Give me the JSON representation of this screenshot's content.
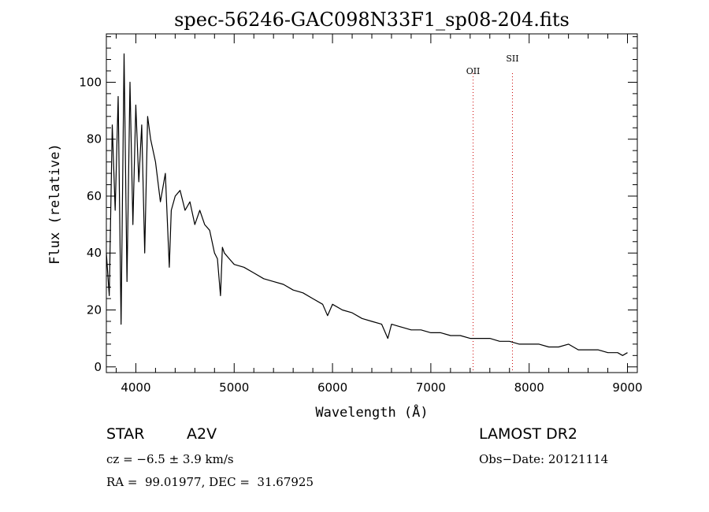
{
  "chart_data": {
    "type": "line",
    "title": "spec-56246-GAC098N33F1_sp08-204.fits",
    "xlabel": "Wavelength (Å)",
    "ylabel": "Flux (relative)",
    "xlim": [
      3700,
      9100
    ],
    "ylim": [
      -2,
      117
    ],
    "xticks": [
      4000,
      5000,
      6000,
      7000,
      8000,
      9000
    ],
    "yticks": [
      0,
      20,
      40,
      60,
      80,
      100
    ],
    "grid": false,
    "series": [
      {
        "x": [
          3700,
          3730,
          3760,
          3790,
          3820,
          3850,
          3880,
          3910,
          3940,
          3970,
          4000,
          4030,
          4060,
          4090,
          4120,
          4150,
          4200,
          4250,
          4300,
          4340,
          4360,
          4400,
          4450,
          4500,
          4550,
          4600,
          4650,
          4700,
          4750,
          4800,
          4830,
          4861,
          4880,
          4900,
          4950,
          5000,
          5100,
          5200,
          5300,
          5400,
          5500,
          5600,
          5700,
          5800,
          5900,
          5950,
          6000,
          6100,
          6200,
          6300,
          6400,
          6500,
          6563,
          6600,
          6700,
          6800,
          6900,
          7000,
          7100,
          7200,
          7300,
          7400,
          7500,
          7600,
          7700,
          7800,
          7900,
          8000,
          8100,
          8200,
          8300,
          8400,
          8500,
          8600,
          8700,
          8800,
          8900,
          8950,
          9000
        ],
        "y": [
          40,
          25,
          85,
          55,
          95,
          15,
          110,
          30,
          100,
          50,
          92,
          65,
          85,
          40,
          88,
          80,
          72,
          58,
          68,
          35,
          55,
          60,
          62,
          55,
          58,
          50,
          55,
          50,
          48,
          40,
          38,
          25,
          42,
          40,
          38,
          36,
          35,
          33,
          31,
          30,
          29,
          27,
          26,
          24,
          22,
          18,
          22,
          20,
          19,
          17,
          16,
          15,
          10,
          15,
          14,
          13,
          13,
          12,
          12,
          11,
          11,
          10,
          10,
          10,
          9,
          9,
          8,
          8,
          8,
          7,
          7,
          8,
          6,
          6,
          6,
          5,
          5,
          4,
          5
        ]
      }
    ],
    "lines": [
      {
        "x": 7430,
        "label": "OII"
      },
      {
        "x": 7830,
        "label": "SII"
      }
    ]
  },
  "info": {
    "class": "STAR",
    "subclass": "A2V",
    "survey": "LAMOST DR2",
    "cz": "cz = −6.5 ± 3.9 km/s",
    "obs_date": "Obs−Date: 20121114",
    "coords": "RA =  99.01977, DEC =  31.67925"
  },
  "colors": {
    "axis": "#000000",
    "spectrum": "#000000",
    "lines": "#cc0000"
  }
}
